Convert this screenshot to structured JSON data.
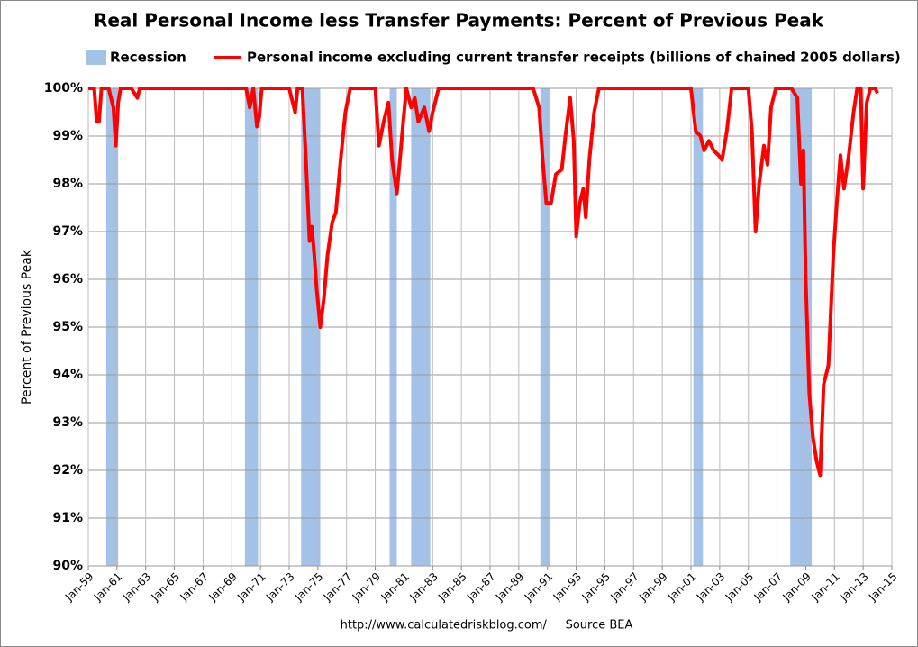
{
  "chart_data": {
    "type": "line",
    "title": "Real Personal Income less Transfer Payments: Percent of Previous Peak",
    "ylabel": "Percent of Previous Peak",
    "source": "http://www.calculatedriskblog.com/     Source BEA",
    "recession_name": "Recession",
    "recession_color": "#a4c2e8",
    "recessions": [
      [
        "Apr-60",
        "Feb-61"
      ],
      [
        "Dec-69",
        "Nov-70"
      ],
      [
        "Nov-73",
        "Mar-75"
      ],
      [
        "Jan-80",
        "Jul-80"
      ],
      [
        "Jul-81",
        "Nov-82"
      ],
      [
        "Jul-90",
        "Mar-91"
      ],
      [
        "Mar-01",
        "Nov-01"
      ],
      [
        "Dec-07",
        "Jun-09"
      ]
    ],
    "x": [
      "Jan-59",
      "Jun-59",
      "Aug-59",
      "Oct-59",
      "Dec-59",
      "Jun-60",
      "Aug-60",
      "Oct-60",
      "Dec-60",
      "Feb-61",
      "Apr-61",
      "Jan-62",
      "Jun-62",
      "Aug-62",
      "Jan-69",
      "Jan-70",
      "Apr-70",
      "Jul-70",
      "Oct-70",
      "Dec-70",
      "Feb-71",
      "Jan-73",
      "Jun-73",
      "Aug-73",
      "Dec-73",
      "Mar-74",
      "Jun-74",
      "Aug-74",
      "Oct-74",
      "Dec-74",
      "Mar-75",
      "Jun-75",
      "Sep-75",
      "Jan-76",
      "Apr-76",
      "Aug-76",
      "Dec-76",
      "Apr-77",
      "Jan-79",
      "Apr-79",
      "Aug-79",
      "Dec-79",
      "Mar-80",
      "Jul-80",
      "Oct-80",
      "Dec-80",
      "Mar-81",
      "Jul-81",
      "Oct-81",
      "Jan-82",
      "Jun-82",
      "Oct-82",
      "Jan-83",
      "Jun-83",
      "Jan-90",
      "Jun-90",
      "Sep-90",
      "Dec-90",
      "Apr-91",
      "Aug-91",
      "Jan-92",
      "Apr-92",
      "Aug-92",
      "Nov-92",
      "Jan-93",
      "Apr-93",
      "Jul-93",
      "Sep-93",
      "Dec-93",
      "Apr-94",
      "Aug-94",
      "Jan-01",
      "May-01",
      "Sep-01",
      "Dec-01",
      "Apr-02",
      "Aug-02",
      "Dec-02",
      "Mar-03",
      "Jul-03",
      "Nov-03",
      "Jan-05",
      "Apr-05",
      "Jul-05",
      "Oct-05",
      "Feb-06",
      "May-06",
      "Aug-06",
      "Dec-06",
      "Jan-08",
      "Jun-08",
      "Sep-08",
      "Nov-08",
      "Jan-09",
      "Apr-09",
      "Jul-09",
      "Oct-09",
      "Jan-10",
      "Apr-10",
      "Aug-10",
      "Dec-10",
      "Mar-11",
      "Jun-11",
      "Sep-11",
      "Jan-12",
      "May-12",
      "Aug-12",
      "Nov-12",
      "Jan-13",
      "Apr-13",
      "Jul-13",
      "Nov-13",
      "Jan-14"
    ],
    "series": [
      {
        "name": "Personal income excluding current transfer receipts (billions of chained 2005 dollars)",
        "color": "#ff0000",
        "values": [
          100,
          100,
          99.3,
          99.3,
          100,
          100,
          99.8,
          99.6,
          98.8,
          99.7,
          100,
          100,
          99.8,
          100,
          100,
          100,
          99.6,
          100,
          99.2,
          99.4,
          100,
          100,
          99.5,
          100,
          100,
          98.5,
          96.8,
          97.1,
          96.5,
          95.8,
          95.0,
          95.6,
          96.5,
          97.2,
          97.4,
          98.5,
          99.5,
          100,
          100,
          98.8,
          99.3,
          99.7,
          98.5,
          97.8,
          98.6,
          99.2,
          100,
          99.6,
          99.8,
          99.3,
          99.6,
          99.1,
          99.5,
          100,
          100,
          99.6,
          98.5,
          97.6,
          97.6,
          98.2,
          98.3,
          99.0,
          99.8,
          98.9,
          96.9,
          97.6,
          97.9,
          97.3,
          98.5,
          99.5,
          100,
          100,
          99.1,
          99.0,
          98.7,
          98.9,
          98.7,
          98.6,
          98.5,
          99.1,
          100,
          100,
          99.1,
          97.0,
          98.0,
          98.8,
          98.4,
          99.6,
          100,
          100,
          99.8,
          98.0,
          98.7,
          96.0,
          93.6,
          92.7,
          92.2,
          91.9,
          93.8,
          94.2,
          96.5,
          97.6,
          98.6,
          97.9,
          98.6,
          99.5,
          100,
          100,
          97.9,
          99.7,
          100,
          100,
          99.9
        ]
      }
    ],
    "xlim": [
      "Jan-59",
      "Jan-15"
    ],
    "xticks": [
      "Jan-59",
      "Jan-61",
      "Jan-63",
      "Jan-65",
      "Jan-67",
      "Jan-69",
      "Jan-71",
      "Jan-73",
      "Jan-75",
      "Jan-77",
      "Jan-79",
      "Jan-81",
      "Jan-83",
      "Jan-85",
      "Jan-87",
      "Jan-89",
      "Jan-91",
      "Jan-93",
      "Jan-95",
      "Jan-97",
      "Jan-99",
      "Jan-01",
      "Jan-03",
      "Jan-05",
      "Jan-07",
      "Jan-09",
      "Jan-11",
      "Jan-13",
      "Jan-15"
    ],
    "ylim": [
      90,
      100
    ],
    "yticks": [
      {
        "value": 90,
        "label": "90%"
      },
      {
        "value": 91,
        "label": "91%"
      },
      {
        "value": 92,
        "label": "92%"
      },
      {
        "value": 93,
        "label": "93%"
      },
      {
        "value": 94,
        "label": "94%"
      },
      {
        "value": 95,
        "label": "95%"
      },
      {
        "value": 96,
        "label": "96%"
      },
      {
        "value": 97,
        "label": "97%"
      },
      {
        "value": 98,
        "label": "98%"
      },
      {
        "value": 99,
        "label": "99%"
      },
      {
        "value": 100,
        "label": "100%"
      }
    ],
    "grid": true
  }
}
